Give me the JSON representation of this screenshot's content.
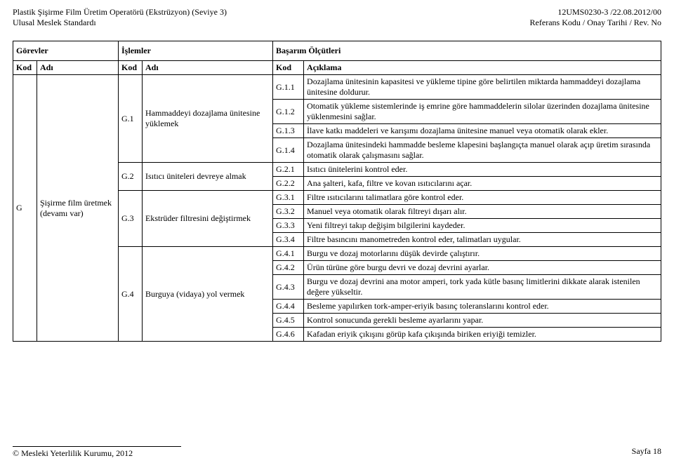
{
  "header": {
    "left1": "Plastik Şişirme Film Üretim Operatörü (Ekstrüzyon) (Seviye 3)",
    "left2": "Ulusal Meslek Standardı",
    "right1": "12UMS0230-3 /22.08.2012/00",
    "right2": "Referans Kodu / Onay Tarihi / Rev. No"
  },
  "thead": {
    "gorevler": "Görevler",
    "islemler": "İşlemler",
    "basarim": "Başarım Ölçütleri",
    "kod": "Kod",
    "adi": "Adı",
    "aciklama": "Açıklama"
  },
  "task": {
    "kod": "G",
    "adi": "Şişirme film üretmek (devamı var)"
  },
  "ops": {
    "g1": {
      "kod": "G.1",
      "adi": "Hammaddeyi dozajlama ünitesine yüklemek"
    },
    "g2": {
      "kod": "G.2",
      "adi": "Isıtıcı üniteleri devreye almak"
    },
    "g3": {
      "kod": "G.3",
      "adi": "Ekstrüder filtresini değiştirmek"
    },
    "g4": {
      "kod": "G.4",
      "adi": "Burguya (vidaya) yol vermek"
    }
  },
  "rows": {
    "g11": {
      "kod": "G.1.1",
      "desc": "Dozajlama ünitesinin kapasitesi ve yükleme tipine göre belirtilen miktarda hammaddeyi dozajlama ünitesine doldurur."
    },
    "g12": {
      "kod": "G.1.2",
      "desc": "Otomatik yükleme sistemlerinde iş emrine göre hammaddelerin silolar üzerinden dozajlama ünitesine yüklenmesini sağlar."
    },
    "g13": {
      "kod": "G.1.3",
      "desc": "İlave katkı maddeleri ve karışımı dozajlama ünitesine manuel veya otomatik olarak ekler."
    },
    "g14": {
      "kod": "G.1.4",
      "desc": "Dozajlama ünitesindeki hammadde besleme klapesini başlangıçta manuel olarak açıp üretim sırasında otomatik olarak çalışmasını sağlar."
    },
    "g21": {
      "kod": "G.2.1",
      "desc": "Isıtıcı ünitelerini kontrol eder."
    },
    "g22": {
      "kod": "G.2.2",
      "desc": "Ana şalteri, kafa, filtre ve kovan ısıtıcılarını açar."
    },
    "g31": {
      "kod": "G.3.1",
      "desc": "Filtre ısıtıcılarını talimatlara göre kontrol eder."
    },
    "g32": {
      "kod": "G.3.2",
      "desc": "Manuel veya otomatik olarak filtreyi dışarı alır."
    },
    "g33": {
      "kod": "G.3.3",
      "desc": "Yeni filtreyi takıp değişim bilgilerini kaydeder."
    },
    "g34": {
      "kod": "G.3.4",
      "desc": "Filtre basıncını manometreden kontrol eder, talimatları uygular."
    },
    "g41": {
      "kod": "G.4.1",
      "desc": "Burgu ve dozaj motorlarını düşük devirde çalıştırır."
    },
    "g42": {
      "kod": "G.4.2",
      "desc": "Ürün türüne göre burgu devri ve dozaj devrini ayarlar."
    },
    "g43": {
      "kod": "G.4.3",
      "desc": "Burgu ve dozaj devrini ana motor amperi, tork yada kütle basınç limitlerini dikkate alarak istenilen değere yükseltir."
    },
    "g44": {
      "kod": "G.4.4",
      "desc": "Besleme yapılırken tork-amper-eriyik basınç toleranslarını kontrol eder."
    },
    "g45": {
      "kod": "G.4.5",
      "desc": "Kontrol sonucunda gerekli besleme ayarlarını yapar."
    },
    "g46": {
      "kod": "G.4.6",
      "desc": "Kafadan eriyik çıkışını görüp kafa çıkışında biriken eriyiği temizler."
    }
  },
  "footer": {
    "left": "Mesleki Yeterlilik Kurumu, 2012",
    "right": "Sayfa 18",
    "copy": "©"
  }
}
